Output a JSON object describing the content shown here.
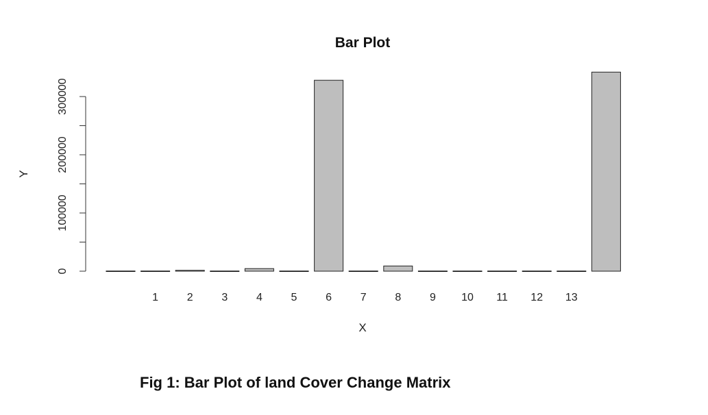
{
  "chart_data": {
    "type": "bar",
    "title": "Bar Plot",
    "xlabel": "X",
    "ylabel": "Y",
    "ylim": [
      0,
      340000
    ],
    "y_ticks": [
      0,
      100000,
      200000,
      300000
    ],
    "bar_labels": [
      "",
      "1",
      "2",
      "3",
      "4",
      "5",
      "6",
      "7",
      "8",
      "9",
      "10",
      "11",
      "12",
      "13",
      ""
    ],
    "values": [
      300,
      400,
      1500,
      300,
      4500,
      300,
      328000,
      300,
      9000,
      300,
      300,
      300,
      300,
      300,
      342000
    ],
    "bar_color": "#bebebe",
    "grid": false
  },
  "caption": "Fig 1: Bar Plot of land Cover Change Matrix"
}
